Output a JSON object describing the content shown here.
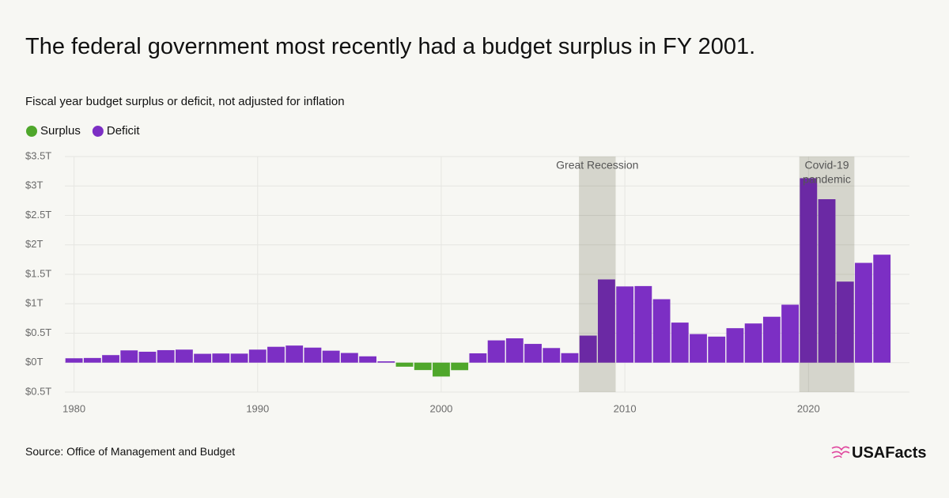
{
  "chart_data": {
    "type": "bar",
    "title": "The federal government most recently had a budget surplus in FY 2001.",
    "subtitle": "Fiscal year budget surplus or deficit, not adjusted for inflation",
    "source": "Source: Office of Management and Budget",
    "logo": "USAFacts",
    "x": [
      1980,
      1981,
      1982,
      1983,
      1984,
      1985,
      1986,
      1987,
      1988,
      1989,
      1990,
      1991,
      1992,
      1993,
      1994,
      1995,
      1996,
      1997,
      1998,
      1999,
      2000,
      2001,
      2002,
      2003,
      2004,
      2005,
      2006,
      2007,
      2008,
      2009,
      2010,
      2011,
      2012,
      2013,
      2014,
      2015,
      2016,
      2017,
      2018,
      2019,
      2020,
      2021,
      2022,
      2023,
      2024
    ],
    "series": [
      {
        "name": "Surplus",
        "color": "#4fa72b",
        "values": [
          null,
          null,
          null,
          null,
          null,
          null,
          null,
          null,
          null,
          null,
          null,
          null,
          null,
          null,
          null,
          null,
          null,
          null,
          -0.069,
          -0.126,
          -0.236,
          -0.128,
          null,
          null,
          null,
          null,
          null,
          null,
          null,
          null,
          null,
          null,
          null,
          null,
          null,
          null,
          null,
          null,
          null,
          null,
          null,
          null,
          null,
          null,
          null
        ]
      },
      {
        "name": "Deficit",
        "color": "#7c2fc4",
        "values": [
          0.074,
          0.079,
          0.128,
          0.208,
          0.185,
          0.212,
          0.221,
          0.15,
          0.155,
          0.153,
          0.221,
          0.269,
          0.29,
          0.255,
          0.203,
          0.164,
          0.107,
          0.022,
          null,
          null,
          null,
          null,
          0.158,
          0.378,
          0.413,
          0.318,
          0.248,
          0.161,
          0.459,
          1.413,
          1.294,
          1.3,
          1.077,
          0.68,
          0.485,
          0.442,
          0.585,
          0.665,
          0.779,
          0.984,
          3.132,
          2.775,
          1.376,
          1.694,
          1.833
        ]
      }
    ],
    "xlim": [
      1979.5,
      2025.5
    ],
    "xticks": [
      1980,
      1990,
      2000,
      2010,
      2020
    ],
    "ylim": [
      -0.5,
      3.5
    ],
    "yticks": [
      {
        "value": -0.5,
        "label": "$0.5T"
      },
      {
        "value": 0,
        "label": "$0T"
      },
      {
        "value": 0.5,
        "label": "$0.5T"
      },
      {
        "value": 1,
        "label": "$1T"
      },
      {
        "value": 1.5,
        "label": "$1.5T"
      },
      {
        "value": 2,
        "label": "$2T"
      },
      {
        "value": 2.5,
        "label": "$2.5T"
      },
      {
        "value": 3,
        "label": "$3T"
      },
      {
        "value": 3.5,
        "label": "$3.5T"
      }
    ],
    "grid": true,
    "shaded_regions": [
      {
        "lines": [
          "Great Recession"
        ],
        "start": 2007.5,
        "end": 2009.5
      },
      {
        "lines": [
          "Covid-19",
          "pandemic"
        ],
        "start": 2019.5,
        "end": 2022.5
      }
    ]
  }
}
